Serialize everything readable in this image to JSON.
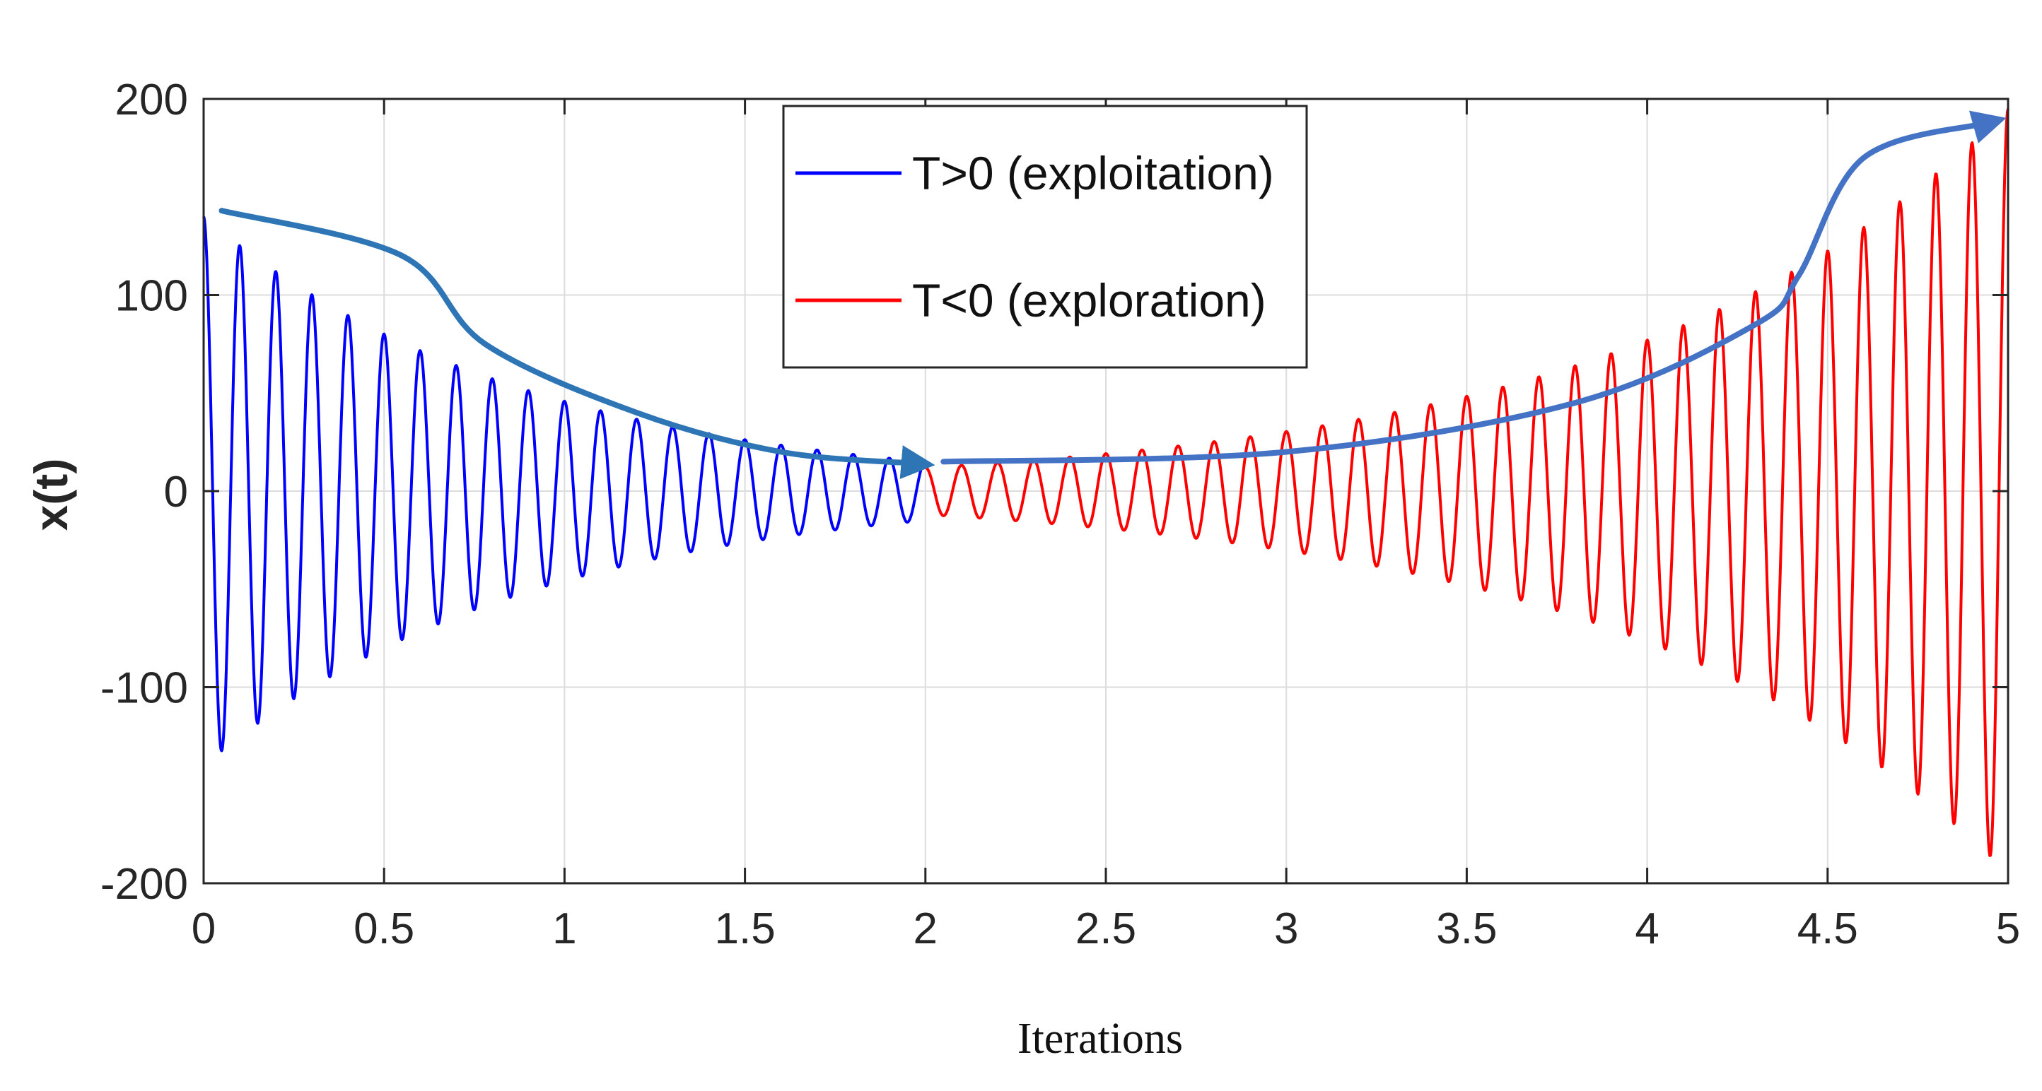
{
  "chart_data": {
    "type": "line",
    "title": "",
    "xlabel": "Iterations",
    "ylabel": "x(t)",
    "xlim": [
      0,
      5
    ],
    "ylim": [
      -200,
      200
    ],
    "grid": true,
    "x_ticks": [
      0,
      0.5,
      1,
      1.5,
      2,
      2.5,
      3,
      3.5,
      4,
      4.5,
      5
    ],
    "x_tick_labels": [
      "0",
      "0.5",
      "1",
      "1.5",
      "2",
      "2.5",
      "3",
      "3.5",
      "4",
      "4.5",
      "5"
    ],
    "y_ticks": [
      200,
      100,
      0,
      -100,
      -200
    ],
    "y_tick_labels": [
      "200",
      "100",
      "0",
      "-100",
      "-200"
    ],
    "legend_position": "top-center",
    "series": [
      {
        "name": "T>0 (exploitation)",
        "color": "#0000ff",
        "x_range": [
          0,
          2
        ],
        "cycles_per_unit": 10,
        "start_amplitude": 140,
        "end_amplitude": 15,
        "phase": "cosine"
      },
      {
        "name": "T<0 (exploration)",
        "color": "#ff0000",
        "x_range": [
          2,
          5
        ],
        "cycles_per_unit": 10,
        "start_amplitude": 12,
        "end_amplitude": 195,
        "phase": "cosine"
      }
    ],
    "annotations": [
      {
        "type": "arrow",
        "description": "decreasing envelope",
        "color": "#2e75b6",
        "points": [
          [
            0.05,
            143
          ],
          [
            0.55,
            120
          ],
          [
            0.78,
            75
          ],
          [
            1.2,
            40
          ],
          [
            1.6,
            20
          ],
          [
            1.98,
            14
          ]
        ]
      },
      {
        "type": "arrow",
        "description": "increasing envelope",
        "color": "#4472c4",
        "points": [
          [
            2.05,
            15
          ],
          [
            3.0,
            20
          ],
          [
            3.8,
            45
          ],
          [
            4.3,
            85
          ],
          [
            4.42,
            110
          ],
          [
            4.6,
            170
          ],
          [
            4.95,
            188
          ]
        ]
      }
    ]
  }
}
